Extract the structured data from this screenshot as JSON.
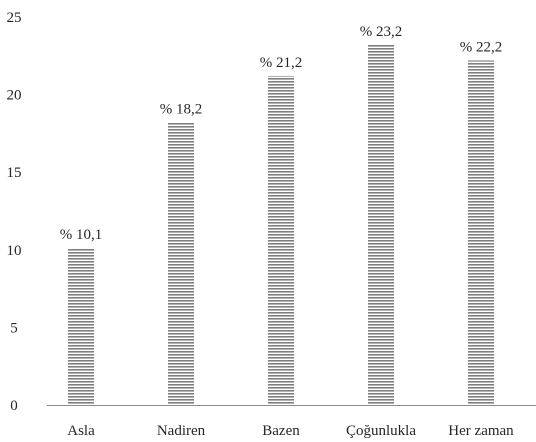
{
  "chart_data": {
    "type": "bar",
    "title": "",
    "xlabel": "",
    "ylabel": "",
    "categories": [
      "Asla",
      "Nadiren",
      "Bazen",
      "Çoğunlukla",
      "Her zaman"
    ],
    "values": [
      10.1,
      18.2,
      21.2,
      23.2,
      22.2
    ],
    "data_labels": [
      "% 10,1",
      "% 18,2",
      "% 21,2",
      "% 23,2",
      "% 22,2"
    ],
    "ylim": [
      0,
      25
    ],
    "yticks": [
      "0",
      "5",
      "10",
      "15",
      "20",
      "25"
    ],
    "grid": false,
    "legend": "none",
    "bar_fill": "horizontal-stripes",
    "bar_color": "#7f7f7f"
  }
}
